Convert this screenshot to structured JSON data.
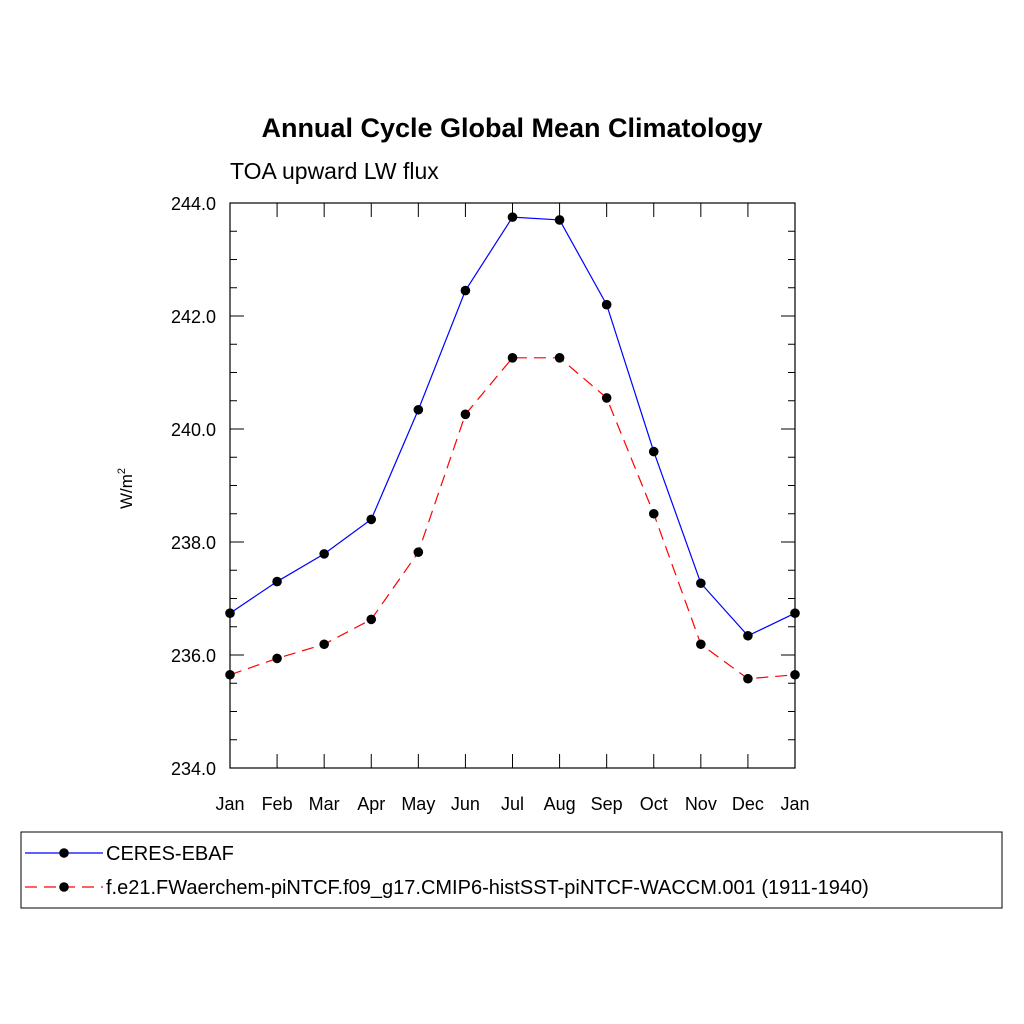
{
  "chart_data": {
    "type": "line",
    "title": "Annual Cycle Global Mean Climatology",
    "subtitle": "TOA upward LW flux",
    "ylabel": "W/m",
    "ylabel_sup": "2",
    "xlabel": "",
    "categories": [
      "Jan",
      "Feb",
      "Mar",
      "Apr",
      "May",
      "Jun",
      "Jul",
      "Aug",
      "Sep",
      "Oct",
      "Nov",
      "Dec",
      "Jan"
    ],
    "ylim": [
      234.0,
      244.0
    ],
    "yticks": [
      "234.0",
      "236.0",
      "238.0",
      "240.0",
      "242.0",
      "244.0"
    ],
    "grid": false,
    "legend_position": "bottom",
    "series": [
      {
        "name": "CERES-EBAF",
        "color": "#0000ff",
        "dash": "solid",
        "marker": "filled-circle",
        "values": [
          236.74,
          237.3,
          237.79,
          238.4,
          240.34,
          242.45,
          243.75,
          243.7,
          242.2,
          239.6,
          237.27,
          236.34,
          236.74
        ]
      },
      {
        "name": "f.e21.FWaerchem-piNTCF.f09_g17.CMIP6-histSST-piNTCF-WACCM.001 (1911-1940)",
        "color": "#ff0000",
        "dash": "dashed",
        "marker": "filled-circle",
        "values": [
          235.65,
          235.94,
          236.19,
          236.63,
          237.82,
          240.26,
          241.26,
          241.26,
          240.55,
          238.5,
          236.19,
          235.58,
          235.65
        ]
      }
    ]
  }
}
